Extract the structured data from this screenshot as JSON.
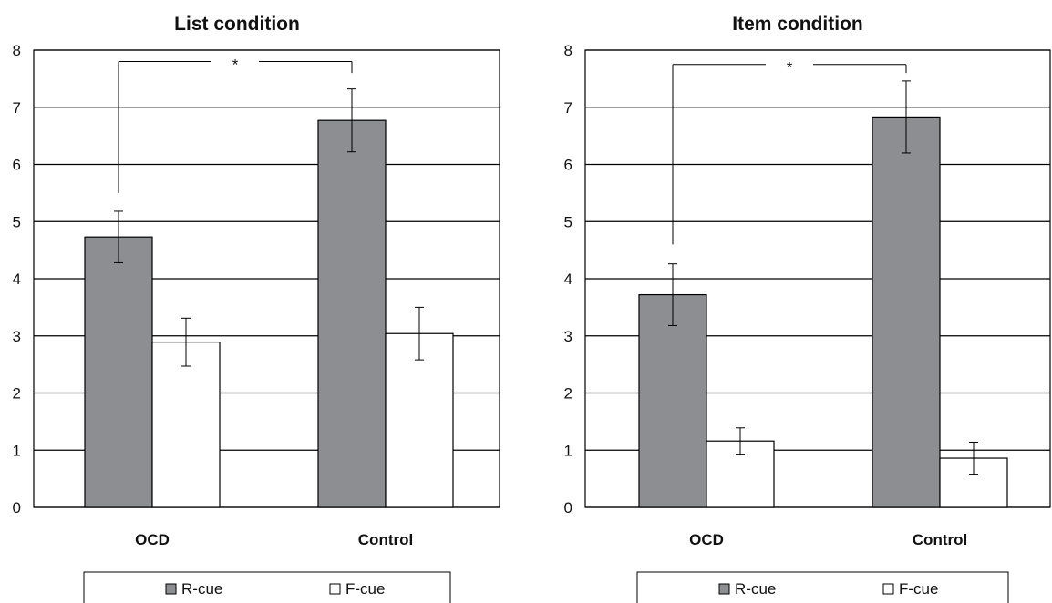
{
  "chart_data": [
    {
      "type": "bar",
      "title": "List condition",
      "categories": [
        "OCD",
        "Control"
      ],
      "series": [
        {
          "name": "R-cue",
          "values": [
            4.73,
            6.77
          ],
          "errors": [
            0.45,
            0.55
          ],
          "color": "#8d8e92"
        },
        {
          "name": "F-cue",
          "values": [
            2.89,
            3.04
          ],
          "errors": [
            0.42,
            0.46
          ],
          "color": "#ffffff"
        }
      ],
      "ylim": [
        0,
        8
      ],
      "yticks": [
        "0",
        "1",
        "2",
        "3",
        "4",
        "5",
        "6",
        "7",
        "8"
      ],
      "grid": true,
      "legend_position": "bottom",
      "legend_labels": [
        "R-cue",
        "F-cue"
      ],
      "significance": {
        "label": "*",
        "from": "OCD",
        "to": "Control",
        "series": "R-cue",
        "bracket_y": 7.8,
        "left_drop_to": 5.5,
        "right_drop_to": 7.6
      }
    },
    {
      "type": "bar",
      "title": "Item condition",
      "categories": [
        "OCD",
        "Control"
      ],
      "series": [
        {
          "name": "R-cue",
          "values": [
            3.72,
            6.83
          ],
          "errors": [
            0.54,
            0.63
          ],
          "color": "#8d8e92"
        },
        {
          "name": "F-cue",
          "values": [
            1.16,
            0.86
          ],
          "errors": [
            0.23,
            0.28
          ],
          "color": "#ffffff"
        }
      ],
      "ylim": [
        0,
        8
      ],
      "yticks": [
        "0",
        "1",
        "2",
        "3",
        "4",
        "5",
        "6",
        "7",
        "8"
      ],
      "grid": true,
      "legend_position": "bottom",
      "legend_labels": [
        "R-cue",
        "F-cue"
      ],
      "significance": {
        "label": "*",
        "from": "OCD",
        "to": "Control",
        "series": "R-cue",
        "bracket_y": 7.75,
        "left_drop_to": 4.6,
        "right_drop_to": 7.6
      }
    }
  ]
}
